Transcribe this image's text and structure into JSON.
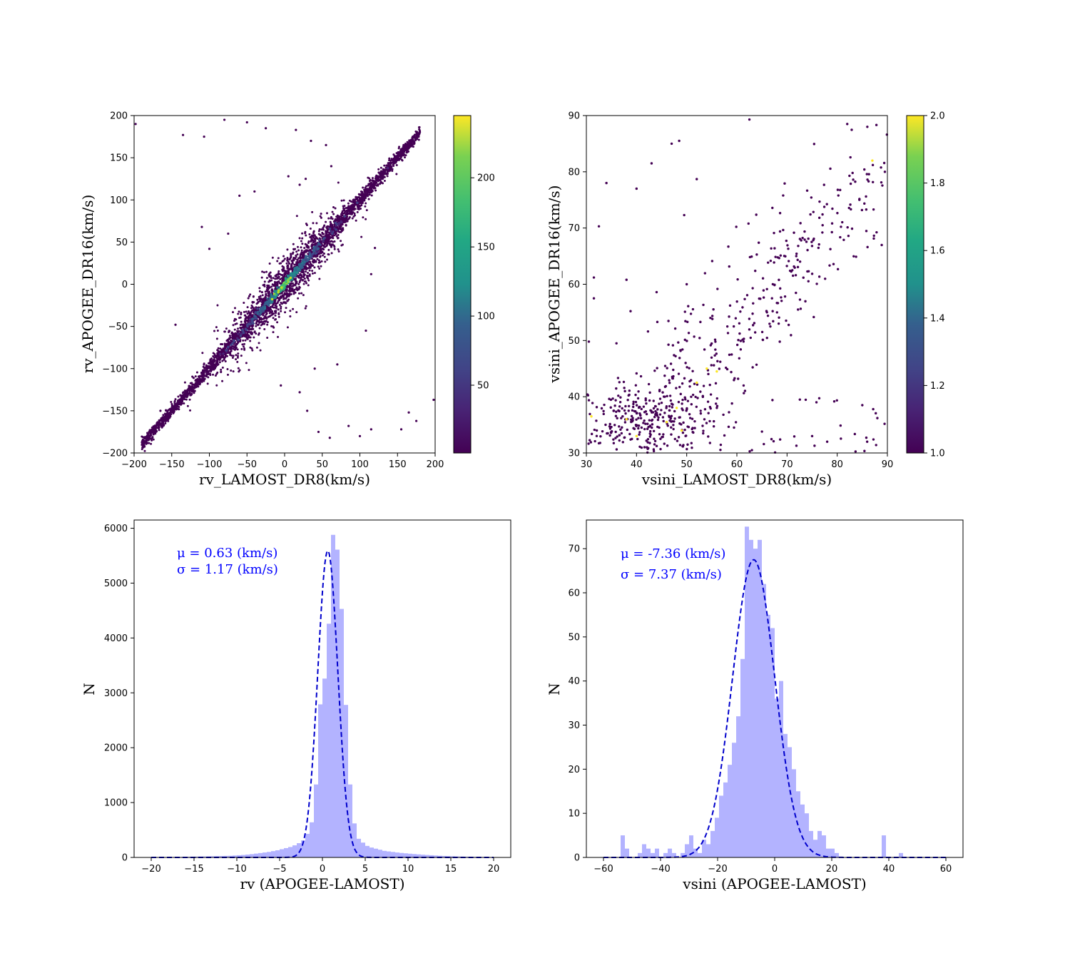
{
  "chart_data": [
    {
      "id": "rv-scatter",
      "type": "scatter",
      "xlabel": "rv_LAMOST_DR8(km/s)",
      "ylabel": "rv_APOGEE_DR16(km/s)",
      "xlim": [
        -200,
        200
      ],
      "ylim": [
        -200,
        200
      ],
      "xticks": [
        -200,
        -150,
        -100,
        -50,
        0,
        50,
        100,
        150,
        200
      ],
      "yticks": [
        -200,
        -150,
        -100,
        -50,
        0,
        50,
        100,
        150,
        200
      ],
      "xtick_labels": [
        "−200",
        "−150",
        "−100",
        "−50",
        "0",
        "50",
        "100",
        "150",
        "200"
      ],
      "ytick_labels": [
        "−200",
        "−150",
        "−100",
        "−50",
        "0",
        "50",
        "100",
        "150",
        "200"
      ],
      "colormap": "viridis",
      "color_by": "point density (counts)",
      "colorbar": {
        "range": [
          1,
          245
        ],
        "ticks": [
          50,
          100,
          150,
          200
        ],
        "tick_labels": [
          "50",
          "100",
          "150",
          "200"
        ]
      },
      "description_of_points": "dense one-to-one ridge along y = x from about -190 to 180 km/s with scatter widening near 0; density peaks near (0,0)",
      "ridge": [
        [
          -190,
          -188
        ],
        [
          -150,
          -150
        ],
        [
          -100,
          -100
        ],
        [
          -50,
          -50
        ],
        [
          0,
          0
        ],
        [
          50,
          50
        ],
        [
          100,
          100
        ],
        [
          150,
          150
        ],
        [
          180,
          180
        ]
      ],
      "outliers": [
        [
          -198,
          190
        ],
        [
          -135,
          177
        ],
        [
          -107,
          175
        ],
        [
          -80,
          195
        ],
        [
          -50,
          192
        ],
        [
          -25,
          185
        ],
        [
          15,
          183
        ],
        [
          35,
          170
        ],
        [
          55,
          165
        ],
        [
          62,
          140
        ],
        [
          5,
          128
        ],
        [
          28,
          125
        ],
        [
          20,
          118
        ],
        [
          -110,
          68
        ],
        [
          -145,
          -48
        ],
        [
          -100,
          42
        ],
        [
          -165,
          -150
        ],
        [
          -75,
          60
        ],
        [
          -60,
          105
        ],
        [
          115,
          12
        ],
        [
          120,
          43
        ],
        [
          108,
          -55
        ],
        [
          40,
          -100
        ],
        [
          30,
          -150
        ],
        [
          45,
          -175
        ],
        [
          60,
          -182
        ],
        [
          85,
          -168
        ],
        [
          100,
          -180
        ],
        [
          115,
          -172
        ],
        [
          165,
          -152
        ],
        [
          175,
          -162
        ],
        [
          198,
          -137
        ],
        [
          155,
          -172
        ],
        [
          -5,
          -120
        ],
        [
          20,
          -128
        ],
        [
          70,
          -95
        ],
        [
          -88,
          -85
        ],
        [
          90,
          85
        ],
        [
          -40,
          110
        ],
        [
          75,
          70
        ]
      ]
    },
    {
      "id": "vsini-scatter",
      "type": "scatter",
      "xlabel": "vsini_LAMOST_DR8(km/s)",
      "ylabel": "vsini_APOGEE_DR16(km/s)",
      "xlim": [
        30,
        90
      ],
      "ylim": [
        30,
        90
      ],
      "xticks": [
        30,
        40,
        50,
        60,
        70,
        80,
        90
      ],
      "yticks": [
        30,
        40,
        50,
        60,
        70,
        80,
        90
      ],
      "xtick_labels": [
        "30",
        "40",
        "50",
        "60",
        "70",
        "80",
        "90"
      ],
      "ytick_labels": [
        "30",
        "40",
        "50",
        "60",
        "70",
        "80",
        "90"
      ],
      "colormap": "viridis",
      "color_by": "point density (counts)",
      "colorbar": {
        "range": [
          1.0,
          2.0
        ],
        "ticks": [
          1.0,
          1.2,
          1.4,
          1.6,
          1.8,
          2.0
        ],
        "tick_labels": [
          "1.0",
          "1.2",
          "1.4",
          "1.6",
          "1.8",
          "2.0"
        ]
      },
      "description_of_points": "broad cloud concentrated at low vsini (35-55) near the lower-left, rising band toward (85, 85); a few points with count 2 (yellow)",
      "density2_points": [
        [
          40,
          33
        ],
        [
          46,
          35.5
        ],
        [
          48,
          38
        ],
        [
          52,
          42.5
        ],
        [
          54,
          45
        ],
        [
          56,
          44.5
        ],
        [
          49,
          34
        ],
        [
          38,
          36
        ],
        [
          31,
          36.5
        ],
        [
          87,
          82
        ]
      ],
      "outliers": [
        [
          34,
          78
        ],
        [
          40,
          77
        ],
        [
          43,
          81.5
        ],
        [
          47,
          85
        ],
        [
          48.5,
          85.5
        ],
        [
          52,
          78.7
        ],
        [
          49.5,
          72.3
        ],
        [
          32.5,
          70.3
        ],
        [
          62.5,
          89.3
        ],
        [
          31.5,
          61.2
        ],
        [
          38,
          60.8
        ],
        [
          31.5,
          57.5
        ],
        [
          44,
          58.6
        ],
        [
          50,
          60
        ],
        [
          36,
          49.5
        ],
        [
          30.5,
          49.8
        ],
        [
          82,
          88.5
        ],
        [
          86,
          88
        ],
        [
          89.5,
          80
        ],
        [
          88,
          36.2
        ],
        [
          85,
          38.5
        ],
        [
          78,
          32
        ],
        [
          75,
          33
        ],
        [
          63,
          30.5
        ],
        [
          65,
          33.8
        ],
        [
          67,
          57.5
        ],
        [
          68,
          55
        ]
      ]
    },
    {
      "id": "rv-hist",
      "type": "histogram",
      "xlabel": "rv (APOGEE-LAMOST)",
      "ylabel": "N",
      "xlim": [
        -22,
        22
      ],
      "ylim": [
        0,
        6150
      ],
      "xticks": [
        -20,
        -15,
        -10,
        -5,
        0,
        5,
        10,
        15,
        20
      ],
      "xtick_labels": [
        "−20",
        "−15",
        "−10",
        "−5",
        "0",
        "5",
        "10",
        "15",
        "20"
      ],
      "yticks": [
        0,
        1000,
        2000,
        3000,
        4000,
        5000,
        6000
      ],
      "ytick_labels": [
        "0",
        "1000",
        "2000",
        "3000",
        "4000",
        "5000",
        "6000"
      ],
      "bin_edges_start": -20,
      "bin_width": 0.5,
      "counts": [
        5,
        5,
        6,
        6,
        7,
        8,
        8,
        10,
        12,
        14,
        15,
        17,
        18,
        20,
        22,
        24,
        26,
        28,
        30,
        35,
        40,
        45,
        52,
        60,
        70,
        80,
        90,
        100,
        115,
        130,
        150,
        170,
        190,
        220,
        260,
        310,
        430,
        640,
        1330,
        2790,
        3260,
        4260,
        5880,
        5610,
        4530,
        2780,
        1330,
        620,
        340,
        270,
        210,
        180,
        160,
        140,
        120,
        110,
        100,
        90,
        82,
        75,
        68,
        62,
        56,
        50,
        45,
        40,
        35,
        30,
        27,
        24,
        21,
        18,
        16,
        14,
        12,
        10,
        9,
        8,
        7,
        6
      ],
      "fit": {
        "type": "gaussian",
        "mu": 0.63,
        "sigma": 1.17,
        "peak": 5590
      },
      "bar_color": "#b3b3ff",
      "fit_color": "#0000cc",
      "annotation_lines": [
        "μ = 0.63 (km/s)",
        "σ = 1.17 (km/s)"
      ]
    },
    {
      "id": "vsini-hist",
      "type": "histogram",
      "xlabel": "vsini (APOGEE-LAMOST)",
      "ylabel": "N",
      "xlim": [
        -66,
        66
      ],
      "ylim": [
        0,
        76.5
      ],
      "xticks": [
        -60,
        -40,
        -20,
        0,
        20,
        40,
        60
      ],
      "xtick_labels": [
        "−60",
        "−40",
        "−20",
        "0",
        "20",
        "40",
        "60"
      ],
      "yticks": [
        0,
        10,
        20,
        30,
        40,
        50,
        60,
        70
      ],
      "ytick_labels": [
        "0",
        "10",
        "20",
        "30",
        "40",
        "50",
        "60",
        "70"
      ],
      "bin_edges_start": -60,
      "bin_width": 1.5,
      "counts": [
        0,
        0,
        0,
        0,
        5,
        2,
        0,
        0,
        1,
        3,
        2,
        1,
        2,
        0,
        1,
        2,
        1,
        0,
        1,
        3,
        5,
        2,
        1,
        4,
        3,
        6,
        9,
        14,
        17,
        21,
        26,
        32,
        45,
        75,
        72,
        70,
        72,
        62,
        55,
        52,
        36,
        40,
        28,
        25,
        20,
        15,
        12,
        10,
        6,
        4,
        6,
        5,
        2,
        2,
        1,
        0,
        0,
        0,
        0,
        0,
        0,
        0,
        0,
        0,
        0,
        5,
        0,
        0,
        0,
        1,
        0,
        0,
        0,
        0,
        0,
        0,
        0,
        0,
        0,
        0
      ],
      "fit": {
        "type": "gaussian",
        "mu": -7.36,
        "sigma": 7.37,
        "peak": 67.5
      },
      "bar_color": "#b3b3ff",
      "fit_color": "#0000cc",
      "annotation_lines": [
        "μ = -7.36 (km/s)",
        "σ = 7.37 (km/s)"
      ]
    }
  ]
}
